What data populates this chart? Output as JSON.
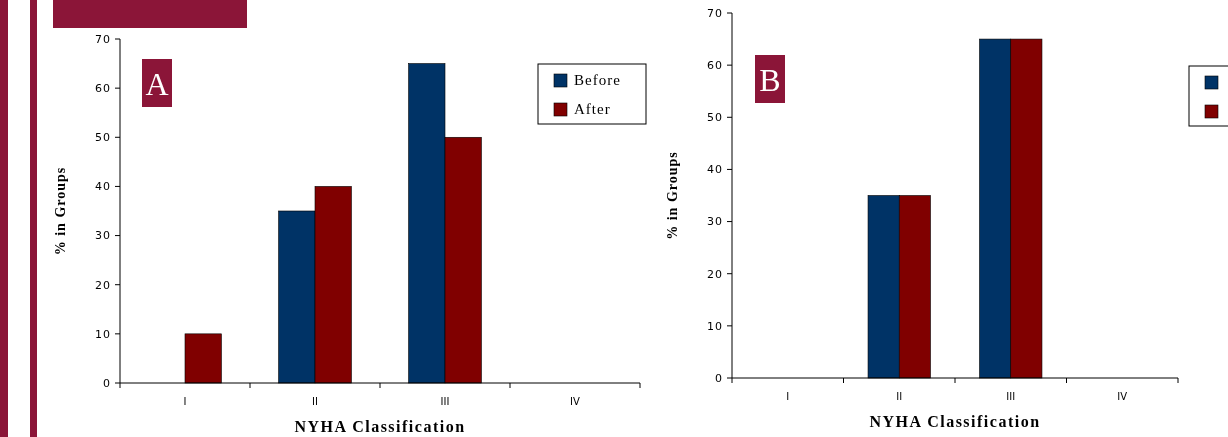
{
  "chart_data": [
    {
      "type": "bar",
      "annotations": [
        "A"
      ],
      "xlabel": "NYHA Classification",
      "ylabel": "% in Groups",
      "categories": [
        "I",
        "II",
        "III",
        "IV"
      ],
      "series": [
        {
          "name": "Before",
          "color": "#003366",
          "values": [
            0,
            35,
            65,
            0
          ]
        },
        {
          "name": "After",
          "color": "#800000",
          "values": [
            10,
            40,
            50,
            0
          ]
        }
      ],
      "ylim": [
        0,
        70
      ],
      "yticks": [
        0,
        10,
        20,
        30,
        40,
        50,
        60,
        70
      ],
      "grid": false,
      "legend": "top right"
    },
    {
      "type": "bar",
      "annotations": [
        "B"
      ],
      "xlabel": "NYHA Classification",
      "ylabel": "% in Groups",
      "categories": [
        "I",
        "II",
        "III",
        "IV"
      ],
      "series": [
        {
          "color": "#003366",
          "values": [
            0,
            35,
            65,
            0
          ]
        },
        {
          "color": "#800000",
          "values": [
            0,
            35,
            65,
            0
          ]
        }
      ],
      "ylim": [
        0,
        70
      ],
      "yticks": [
        0,
        10,
        20,
        30,
        40,
        50,
        60,
        70
      ],
      "grid": false,
      "legend": "right"
    }
  ]
}
